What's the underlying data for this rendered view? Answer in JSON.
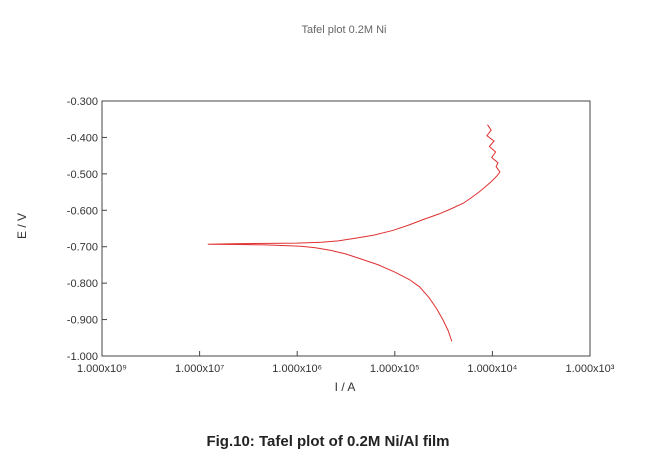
{
  "caption": "Fig.10: Tafel plot of 0.2M Ni/Al film",
  "chart_data": {
    "type": "line",
    "title": "Tafel plot 0.2M Ni",
    "xlabel": "I / A",
    "ylabel": "E / V",
    "x_scale": "log",
    "xlim": [
      1e-09,
      0.001
    ],
    "ylim": [
      -1.0,
      -0.3
    ],
    "x_tick_labels": [
      "1.000x10⁹",
      "1.000x10⁷",
      "1.000x10⁶",
      "1.000x10⁵",
      "1.000x10⁴",
      "1.000x10³"
    ],
    "y_tick_values": [
      -0.3,
      -0.4,
      -0.5,
      -0.6,
      -0.7,
      -0.8,
      -0.9,
      -1.0
    ],
    "y_tick_labels": [
      "-0.300",
      "-0.400",
      "-0.500",
      "-0.600",
      "-0.700",
      "-0.800",
      "-0.900",
      "-1.000"
    ],
    "grid": false,
    "line_color": "#e03030",
    "series": [
      {
        "values": [
          [
            -0.96,
            2e-05
          ],
          [
            -0.93,
            1.8e-05
          ],
          [
            -0.9,
            1.55e-05
          ],
          [
            -0.87,
            1.3e-05
          ],
          [
            -0.84,
            1.05e-05
          ],
          [
            -0.81,
            8e-06
          ],
          [
            -0.79,
            6e-06
          ],
          [
            -0.77,
            4e-06
          ],
          [
            -0.75,
            2.5e-06
          ],
          [
            -0.735,
            1.6e-06
          ],
          [
            -0.72,
            1e-06
          ],
          [
            -0.71,
            6.5e-07
          ],
          [
            -0.703,
            4.2e-07
          ],
          [
            -0.699,
            2.8e-07
          ],
          [
            -0.697,
            1.8e-07
          ],
          [
            -0.695,
            1e-07
          ],
          [
            -0.694,
            5e-08
          ],
          [
            -0.693,
            2e-08
          ],
          [
            -0.692,
            4e-08
          ],
          [
            -0.691,
            1.1e-07
          ],
          [
            -0.69,
            2.5e-07
          ],
          [
            -0.688,
            5e-07
          ],
          [
            -0.684,
            8e-07
          ],
          [
            -0.677,
            1.3e-06
          ],
          [
            -0.668,
            2.2e-06
          ],
          [
            -0.655,
            3.8e-06
          ],
          [
            -0.64,
            6e-06
          ],
          [
            -0.625,
            9e-06
          ],
          [
            -0.61,
            1.4e-05
          ],
          [
            -0.595,
            2e-05
          ],
          [
            -0.58,
            2.8e-05
          ],
          [
            -0.565,
            3.5e-05
          ],
          [
            -0.55,
            4.3e-05
          ],
          [
            -0.535,
            5.2e-05
          ],
          [
            -0.52,
            6.2e-05
          ],
          [
            -0.505,
            7.2e-05
          ],
          [
            -0.495,
            7.8e-05
          ],
          [
            -0.48,
            7e-05
          ],
          [
            -0.47,
            7.4e-05
          ],
          [
            -0.455,
            6.2e-05
          ],
          [
            -0.44,
            6.9e-05
          ],
          [
            -0.425,
            5.8e-05
          ],
          [
            -0.41,
            6.6e-05
          ],
          [
            -0.395,
            5.4e-05
          ],
          [
            -0.38,
            6.1e-05
          ],
          [
            -0.365,
            5.5e-05
          ]
        ]
      }
    ]
  }
}
